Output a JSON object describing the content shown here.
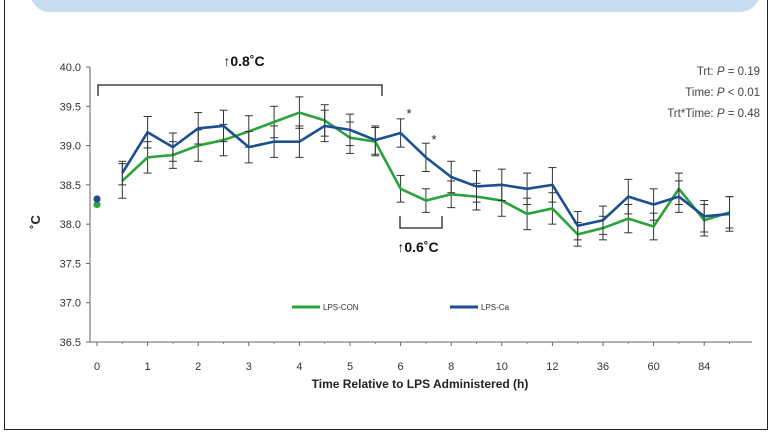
{
  "chart_data": {
    "type": "line",
    "ylabel": "˚C",
    "xlabel": "Time Relative to LPS Administered (h)",
    "ylim": [
      36.5,
      40.0
    ],
    "yticks": [
      "36.5",
      "37.0",
      "37.5",
      "38.0",
      "38.5",
      "39.0",
      "39.5",
      "40.0"
    ],
    "xtick_labels": [
      "0",
      "1",
      "2",
      "3",
      "4",
      "5",
      "6",
      "8",
      "10",
      "12",
      "36",
      "60",
      "84"
    ],
    "grid": false,
    "legend_position": "bottom-center",
    "series": [
      {
        "name": "LPS-CON",
        "color": "#2aa33b",
        "values": [
          38.25,
          38.55,
          38.85,
          38.88,
          39.0,
          39.07,
          39.18,
          39.3,
          39.42,
          39.32,
          39.1,
          39.05,
          38.45,
          38.3,
          38.38,
          38.35,
          38.3,
          38.13,
          38.2,
          37.87,
          37.95,
          38.07,
          37.97,
          38.45,
          38.05,
          38.15
        ],
        "errors": [
          0.0,
          0.22,
          0.2,
          0.17,
          0.2,
          0.2,
          0.2,
          0.2,
          0.2,
          0.2,
          0.2,
          0.18,
          0.17,
          0.15,
          0.17,
          0.17,
          0.2,
          0.2,
          0.2,
          0.15,
          0.15,
          0.18,
          0.17,
          0.2,
          0.2,
          0.2
        ]
      },
      {
        "name": "LPS-Ca",
        "color": "#1a4f91",
        "values": [
          38.32,
          38.65,
          39.17,
          38.98,
          39.22,
          39.25,
          38.98,
          39.05,
          39.05,
          39.25,
          39.2,
          39.07,
          39.16,
          38.85,
          38.6,
          38.48,
          38.5,
          38.45,
          38.5,
          37.98,
          38.05,
          38.35,
          38.25,
          38.35,
          38.1,
          38.13
        ],
        "errors": [
          0.0,
          0.15,
          0.2,
          0.18,
          0.2,
          0.2,
          0.2,
          0.2,
          0.2,
          0.2,
          0.2,
          0.18,
          0.18,
          0.18,
          0.2,
          0.2,
          0.2,
          0.2,
          0.22,
          0.18,
          0.18,
          0.22,
          0.2,
          0.2,
          0.2,
          0.22
        ]
      }
    ],
    "annotations": [
      {
        "text": "↑0.8˚C",
        "type": "bracket"
      },
      {
        "text": "↑0.6˚C",
        "type": "bracket"
      },
      {
        "text": "*",
        "type": "significance"
      },
      {
        "text": "*",
        "type": "significance"
      }
    ],
    "stats_text": [
      {
        "label": "Trt: ",
        "p": "P",
        "rest": " = 0.19"
      },
      {
        "label": "Time: ",
        "p": "P",
        "rest": " < 0.01"
      },
      {
        "label": "Trt*Time: ",
        "p": "P",
        "rest": " = 0.48"
      }
    ]
  }
}
